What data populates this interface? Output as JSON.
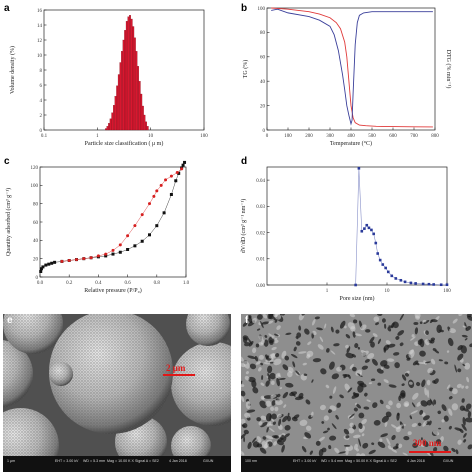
{
  "panels": {
    "a": {
      "label": "a",
      "chart_data": {
        "type": "bar",
        "xscale": "log",
        "xlim": [
          0.1,
          100
        ],
        "ylim": [
          0,
          16
        ],
        "xlabel": "Particle size classification ( μ m)",
        "ylabel": "Volume density (%)",
        "xticks": [
          "0.1",
          "1",
          "10",
          "100"
        ],
        "yticks": [
          "0",
          "2",
          "4",
          "6",
          "8",
          "10",
          "12",
          "14",
          "16"
        ],
        "bar_color": "#d8172f",
        "x": [
          1.45,
          1.55,
          1.66,
          1.78,
          1.91,
          2.05,
          2.2,
          2.36,
          2.53,
          2.71,
          2.9,
          3.11,
          3.33,
          3.57,
          3.83,
          4.1,
          4.4,
          4.71,
          5.05,
          5.41,
          5.8,
          6.22,
          6.66,
          7.14,
          7.65,
          8.2,
          8.79
        ],
        "values": [
          0.2,
          0.5,
          0.9,
          1.5,
          2.3,
          3.3,
          4.5,
          5.9,
          7.4,
          9.0,
          10.5,
          12.0,
          13.3,
          14.5,
          15.1,
          15.3,
          14.8,
          13.8,
          12.3,
          10.5,
          8.5,
          6.5,
          4.8,
          3.2,
          2.0,
          1.1,
          0.5
        ]
      }
    },
    "b": {
      "label": "b",
      "chart_data": {
        "type": "line",
        "xlim": [
          0,
          800
        ],
        "ylim": [
          0,
          100
        ],
        "xlabel": "Temperature (°C)",
        "ylabel": "TG (%)",
        "ylabel_right": "DTG (% min⁻¹)",
        "xticks": [
          "0",
          "100",
          "200",
          "300",
          "400",
          "500",
          "600",
          "700",
          "800"
        ],
        "yticks": [
          "0",
          "20",
          "40",
          "60",
          "80",
          "100"
        ],
        "series": [
          {
            "color": "#e03a3a",
            "x": [
              20,
              100,
              200,
              250,
              300,
              330,
              350,
              370,
              380,
              390,
              400,
              410,
              420,
              440,
              470,
              520,
              600,
              700,
              790
            ],
            "y": [
              100,
              99,
              97,
              95,
              92,
              88,
              83,
              72,
              60,
              40,
              20,
              10,
              6,
              4,
              3.5,
              3,
              2.8,
              2.6,
              2.5
            ]
          },
          {
            "color": "#3a3f9a",
            "x": [
              20,
              50,
              100,
              200,
              250,
              300,
              320,
              340,
              360,
              370,
              380,
              390,
              400,
              405,
              410,
              420,
              430,
              440,
              460,
              500,
              600,
              700,
              790
            ],
            "y": [
              98,
              99,
              96,
              93,
              90,
              85,
              78,
              65,
              45,
              33,
              20,
              12,
              5,
              8,
              30,
              70,
              88,
              94,
              96,
              97,
              97,
              97,
              97
            ]
          }
        ]
      }
    },
    "c": {
      "label": "c",
      "chart_data": {
        "type": "scatter",
        "xlim": [
          0,
          1.0
        ],
        "ylim": [
          0,
          120
        ],
        "xlabel": "Relative pressure (P/P₀)",
        "ylabel": "Quantity adsorbed (cm³ g⁻¹)",
        "xticks": [
          "0.0",
          "0.2",
          "0.4",
          "0.6",
          "0.8",
          "1.0"
        ],
        "yticks": [
          "0",
          "20",
          "40",
          "60",
          "80",
          "100",
          "120"
        ],
        "series": [
          {
            "color": "#111111",
            "x": [
              0.005,
              0.01,
              0.02,
              0.04,
              0.06,
              0.08,
              0.1,
              0.15,
              0.2,
              0.25,
              0.3,
              0.35,
              0.4,
              0.45,
              0.5,
              0.55,
              0.6,
              0.65,
              0.7,
              0.75,
              0.8,
              0.85,
              0.9,
              0.93,
              0.95,
              0.97,
              0.98,
              0.99
            ],
            "y": [
              6,
              9,
              11,
              13,
              14,
              15,
              16,
              17,
              18,
              19,
              20,
              21,
              22,
              23,
              25,
              27,
              30,
              34,
              39,
              46,
              56,
              70,
              90,
              105,
              113,
              119,
              122,
              125
            ]
          },
          {
            "color": "#d62020",
            "x": [
              0.15,
              0.2,
              0.25,
              0.3,
              0.35,
              0.4,
              0.45,
              0.5,
              0.55,
              0.6,
              0.65,
              0.7,
              0.75,
              0.78,
              0.8,
              0.83,
              0.86,
              0.9,
              0.94,
              0.97
            ],
            "y": [
              17,
              18,
              19,
              20,
              21,
              23,
              25,
              29,
              35,
              45,
              56,
              68,
              80,
              88,
              94,
              100,
              106,
              110,
              114,
              118
            ]
          }
        ]
      }
    },
    "d": {
      "label": "d",
      "chart_data": {
        "type": "line",
        "xscale": "log",
        "xlim": [
          0.1,
          100
        ],
        "ylim": [
          0,
          0.045
        ],
        "xlabel": "Pore size (nm)",
        "ylabel": "dV/dD (cm³ g⁻¹ nm⁻¹)",
        "xticks": [
          "1",
          "10",
          "100"
        ],
        "yticks": [
          "0.00",
          "0.01",
          "0.02",
          "0.03",
          "0.04"
        ],
        "series": [
          {
            "color": "#2a3a9a",
            "x": [
              3.0,
              3.4,
              3.8,
              4.2,
              4.6,
              5.0,
              5.5,
              6.0,
              6.5,
              7.0,
              7.7,
              8.5,
              9.5,
              10.5,
              12,
              14,
              17,
              20,
              25,
              30,
              40,
              50,
              60,
              80,
              100
            ],
            "y": [
              0.0,
              0.0445,
              0.0205,
              0.0215,
              0.0228,
              0.0218,
              0.021,
              0.0195,
              0.016,
              0.012,
              0.0095,
              0.0078,
              0.0065,
              0.005,
              0.0035,
              0.0025,
              0.0018,
              0.0012,
              0.0008,
              0.0006,
              0.0004,
              0.0003,
              0.0002,
              0.0001,
              0.0001
            ]
          }
        ]
      }
    },
    "e": {
      "label": "e",
      "scale_text": "2 μm",
      "scale_small": "1 μm",
      "info": [
        "EHT = 3.00 kV",
        "WD = 5.3 mm",
        "Mag = 10.00 K X",
        "Signal A = SE2",
        "4 Jan 2018",
        "GXUN"
      ]
    },
    "f": {
      "label": "f",
      "scale_text": "300 nm",
      "scale_small": "100 nm",
      "info": [
        "EHT = 3.00 kV",
        "WD = 5.4 mm",
        "Mag = 50.00 K X",
        "Signal A = SE2",
        "4 Jan 2018",
        "GXUN"
      ]
    }
  }
}
